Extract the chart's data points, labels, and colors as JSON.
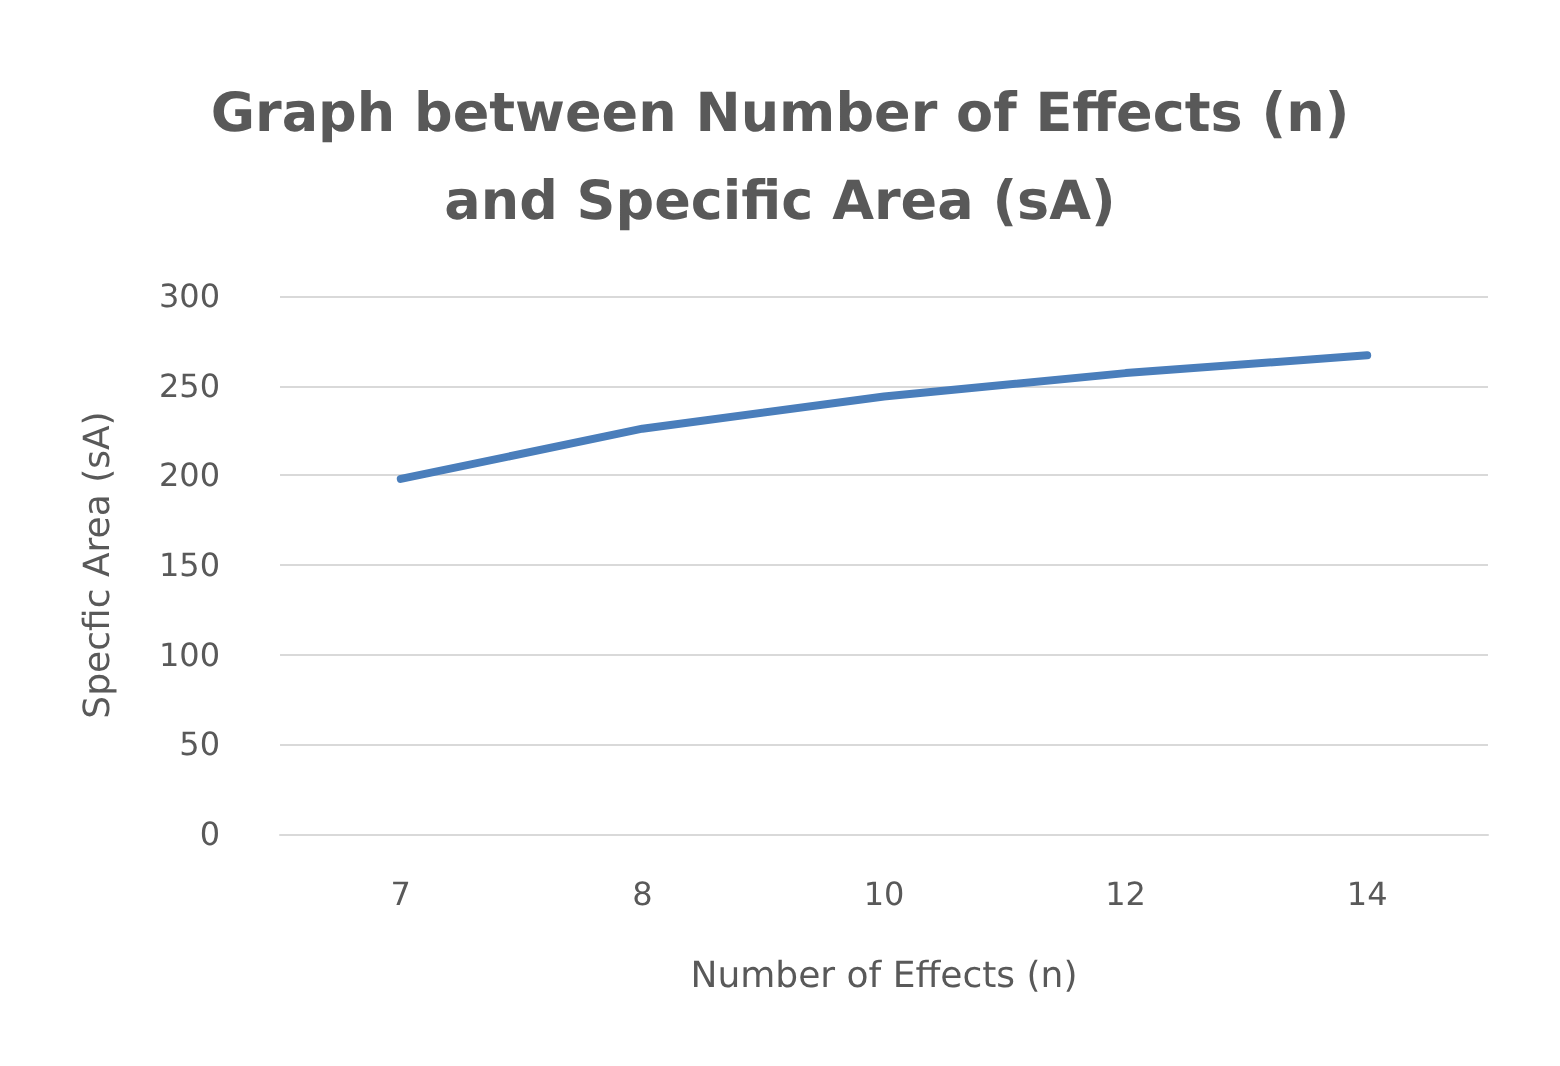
{
  "chart_data": {
    "type": "line",
    "title": "Graph between Number of Effects (n)\nand Specific Area (sA)",
    "xlabel": "Number of Effects (n)",
    "ylabel": "Specfic Area (sA)",
    "categories": [
      "7",
      "8",
      "10",
      "12",
      "14"
    ],
    "series": [
      {
        "color": "#4a7ebb",
        "values": [
          198,
          226,
          244,
          257,
          267
        ]
      }
    ],
    "ylim": [
      0,
      300
    ],
    "yticks": [
      0,
      50,
      100,
      150,
      200,
      250,
      300
    ],
    "grid": "y",
    "marker": "none",
    "line_style": "solid"
  }
}
